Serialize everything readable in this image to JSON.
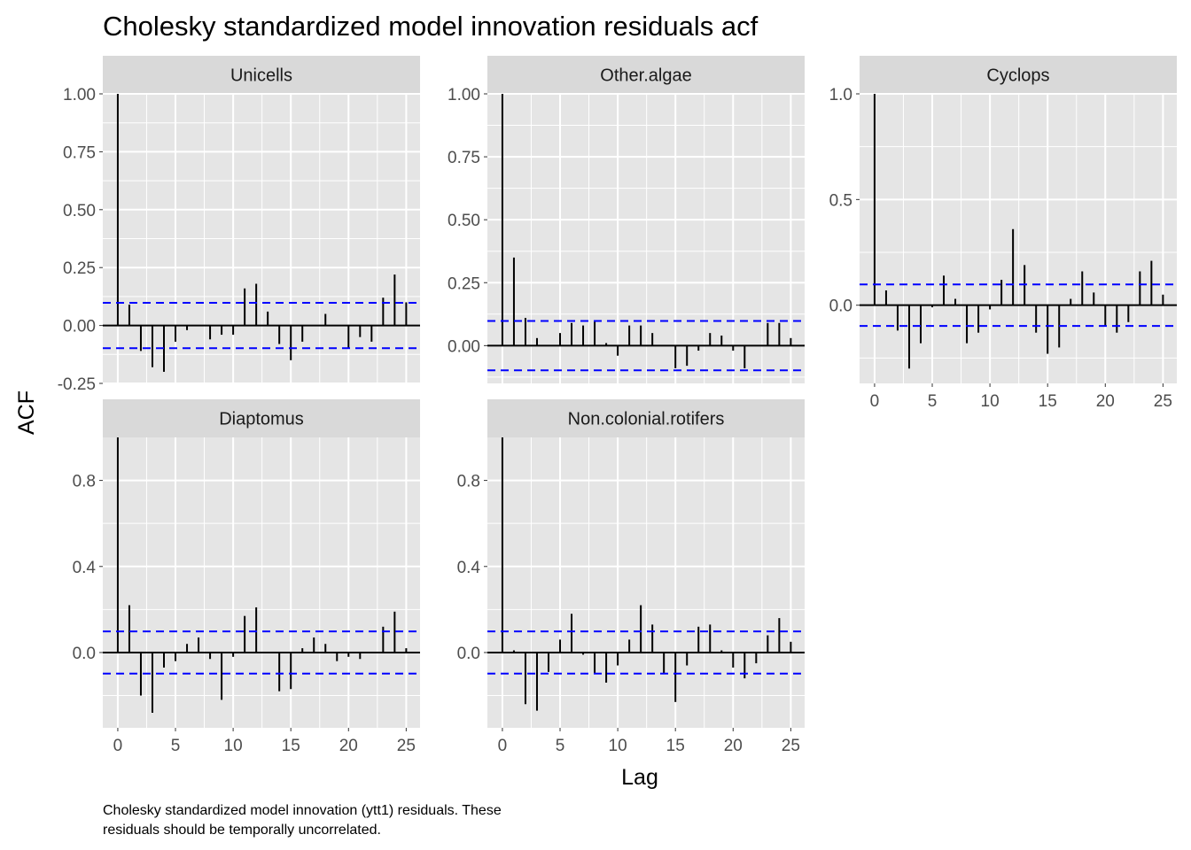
{
  "title": "Cholesky standardized model innovation residuals acf",
  "xlabel": "Lag",
  "ylabel": "ACF",
  "caption_lines": [
    "Cholesky standardized model innovation (ytt1) residuals. These",
    "residuals should be temporally uncorrelated."
  ],
  "colors": {
    "panel_bg": "#e5e5e5",
    "strip_bg": "#d9d9d9",
    "grid": "#ffffff",
    "bar": "#000000",
    "ci_line": "#0000ff"
  },
  "chart_data": [
    {
      "type": "bar",
      "facet": "Unicells",
      "x": [
        0,
        1,
        2,
        3,
        4,
        5,
        6,
        7,
        8,
        9,
        10,
        11,
        12,
        13,
        14,
        15,
        16,
        17,
        18,
        19,
        20,
        21,
        22,
        23,
        24,
        25
      ],
      "values": [
        1.0,
        0.09,
        -0.11,
        -0.18,
        -0.2,
        -0.07,
        -0.02,
        0.0,
        -0.06,
        -0.04,
        -0.04,
        0.16,
        0.18,
        0.06,
        -0.08,
        -0.15,
        -0.07,
        0.0,
        0.05,
        0.0,
        -0.1,
        -0.05,
        -0.07,
        0.12,
        0.22,
        0.1
      ],
      "ci": 0.098,
      "xlim": [
        -1.3,
        26.2
      ],
      "ylim": [
        -0.25,
        1.0
      ],
      "y_ticks": [
        -0.25,
        0.0,
        0.25,
        0.5,
        0.75,
        1.0
      ],
      "y_tick_labels": [
        "-0.25",
        "0.00",
        "0.25",
        "0.50",
        "0.75",
        "1.00"
      ],
      "x_ticks": [
        0,
        5,
        10,
        15,
        20,
        25
      ],
      "x_tick_labels": [
        "0",
        "5",
        "10",
        "15",
        "20",
        "25"
      ]
    },
    {
      "type": "bar",
      "facet": "Other.algae",
      "x": [
        0,
        1,
        2,
        3,
        4,
        5,
        6,
        7,
        8,
        9,
        10,
        11,
        12,
        13,
        14,
        15,
        16,
        17,
        18,
        19,
        20,
        21,
        22,
        23,
        24,
        25
      ],
      "values": [
        1.0,
        0.35,
        0.11,
        0.03,
        0.0,
        0.05,
        0.09,
        0.08,
        0.1,
        0.01,
        -0.04,
        0.08,
        0.08,
        0.05,
        0.0,
        -0.09,
        -0.08,
        -0.02,
        0.05,
        0.04,
        -0.02,
        -0.09,
        0.0,
        0.09,
        0.09,
        0.03
      ],
      "ci": 0.098,
      "xlim": [
        -1.3,
        26.2
      ],
      "ylim": [
        -0.15,
        1.0
      ],
      "y_ticks": [
        0.0,
        0.25,
        0.5,
        0.75,
        1.0
      ],
      "y_tick_labels": [
        "0.00",
        "0.25",
        "0.50",
        "0.75",
        "1.00"
      ],
      "x_ticks": [
        0,
        5,
        10,
        15,
        20,
        25
      ],
      "x_tick_labels": [
        "0",
        "5",
        "10",
        "15",
        "20",
        "25"
      ]
    },
    {
      "type": "bar",
      "facet": "Cyclops",
      "x": [
        0,
        1,
        2,
        3,
        4,
        5,
        6,
        7,
        8,
        9,
        10,
        11,
        12,
        13,
        14,
        15,
        16,
        17,
        18,
        19,
        20,
        21,
        22,
        23,
        24,
        25
      ],
      "values": [
        1.0,
        0.07,
        -0.12,
        -0.3,
        -0.18,
        -0.01,
        0.14,
        0.03,
        -0.18,
        -0.13,
        -0.02,
        0.12,
        0.36,
        0.19,
        -0.13,
        -0.23,
        -0.2,
        0.03,
        0.16,
        0.06,
        -0.1,
        -0.13,
        -0.08,
        0.16,
        0.21,
        0.05
      ],
      "ci": 0.098,
      "xlim": [
        -1.3,
        26.2
      ],
      "ylim": [
        -0.37,
        1.0
      ],
      "y_ticks": [
        0.0,
        0.5,
        1.0
      ],
      "y_tick_labels": [
        "0.0",
        "0.5",
        "1.0"
      ],
      "x_ticks": [
        0,
        5,
        10,
        15,
        20,
        25
      ],
      "x_tick_labels": [
        "0",
        "5",
        "10",
        "15",
        "20",
        "25"
      ]
    },
    {
      "type": "bar",
      "facet": "Diaptomus",
      "x": [
        0,
        1,
        2,
        3,
        4,
        5,
        6,
        7,
        8,
        9,
        10,
        11,
        12,
        13,
        14,
        15,
        16,
        17,
        18,
        19,
        20,
        21,
        22,
        23,
        24,
        25
      ],
      "values": [
        1.0,
        0.22,
        -0.2,
        -0.28,
        -0.07,
        -0.04,
        0.04,
        0.07,
        -0.03,
        -0.22,
        -0.02,
        0.17,
        0.21,
        0.0,
        -0.18,
        -0.17,
        0.02,
        0.07,
        0.04,
        -0.04,
        -0.02,
        -0.03,
        0.0,
        0.12,
        0.19,
        0.02
      ],
      "ci": 0.098,
      "xlim": [
        -1.3,
        26.2
      ],
      "ylim": [
        -0.35,
        1.0
      ],
      "y_ticks": [
        0.0,
        0.4,
        0.8
      ],
      "y_tick_labels": [
        "0.0",
        "0.4",
        "0.8"
      ],
      "x_ticks": [
        0,
        5,
        10,
        15,
        20,
        25
      ],
      "x_tick_labels": [
        "0",
        "5",
        "10",
        "15",
        "20",
        "25"
      ]
    },
    {
      "type": "bar",
      "facet": "Non.colonial.rotifers",
      "x": [
        0,
        1,
        2,
        3,
        4,
        5,
        6,
        7,
        8,
        9,
        10,
        11,
        12,
        13,
        14,
        15,
        16,
        17,
        18,
        19,
        20,
        21,
        22,
        23,
        24,
        25
      ],
      "values": [
        1.0,
        0.01,
        -0.24,
        -0.27,
        -0.09,
        0.06,
        0.18,
        -0.01,
        -0.1,
        -0.14,
        -0.06,
        0.06,
        0.22,
        0.13,
        -0.1,
        -0.23,
        -0.06,
        0.12,
        0.13,
        0.01,
        -0.07,
        -0.12,
        -0.05,
        0.08,
        0.16,
        0.05
      ],
      "ci": 0.098,
      "xlim": [
        -1.3,
        26.2
      ],
      "ylim": [
        -0.35,
        1.0
      ],
      "y_ticks": [
        0.0,
        0.4,
        0.8
      ],
      "y_tick_labels": [
        "0.0",
        "0.4",
        "0.8"
      ],
      "x_ticks": [
        0,
        5,
        10,
        15,
        20,
        25
      ],
      "x_tick_labels": [
        "0",
        "5",
        "10",
        "15",
        "20",
        "25"
      ]
    }
  ]
}
